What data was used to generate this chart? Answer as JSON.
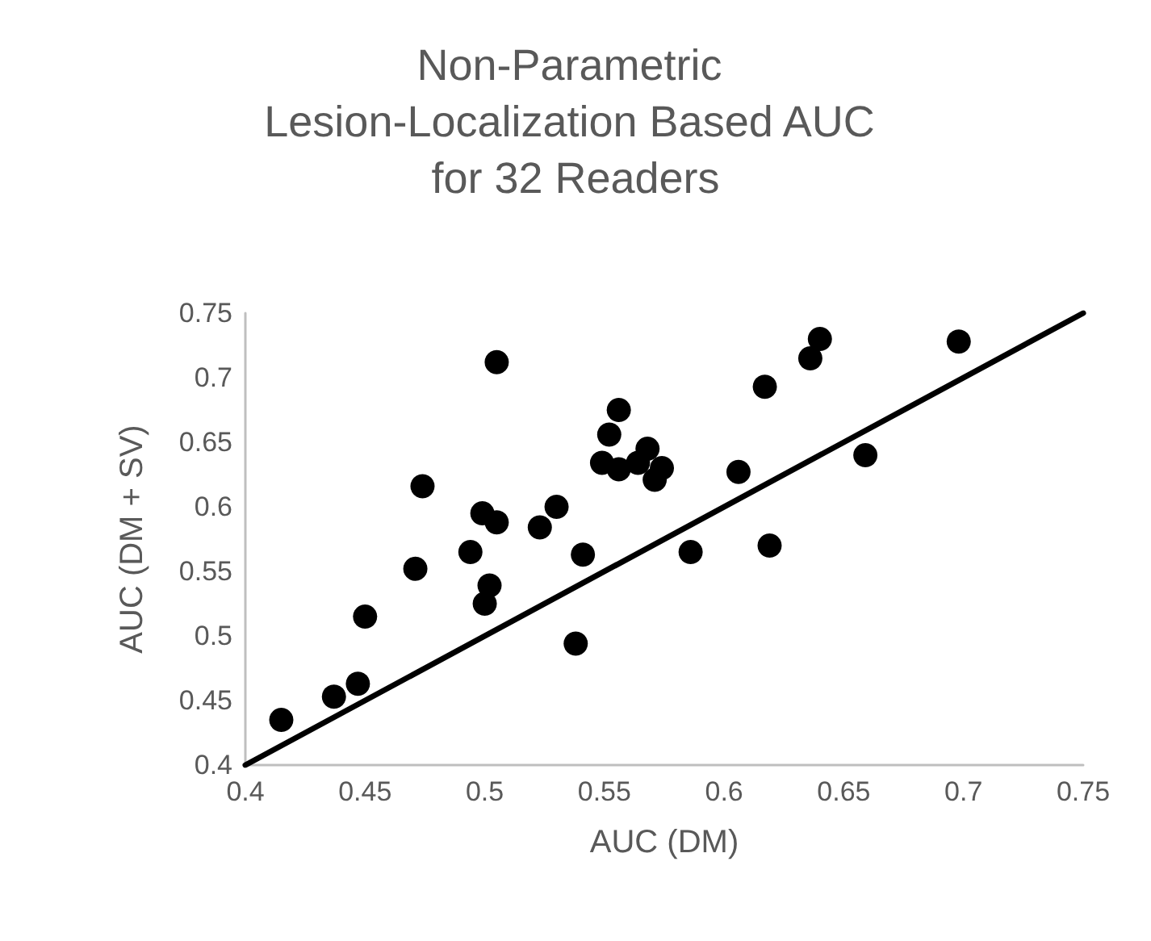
{
  "chart_data": {
    "type": "scatter",
    "title": "Non-Parametric Lesion-Localization Based AUC for 32 Readers",
    "xlabel": "AUC (DM)",
    "ylabel": "AUC (DM + SV)",
    "xlim": [
      0.4,
      0.75
    ],
    "xticks": [
      0.4,
      0.45,
      0.5,
      0.55,
      0.6,
      0.65,
      0.7,
      0.75
    ],
    "ylim": [
      0.4,
      0.75
    ],
    "yticks": [
      0.4,
      0.45,
      0.5,
      0.55,
      0.6,
      0.65,
      0.7,
      0.75
    ],
    "grid": false,
    "series": [
      {
        "color": "#000000",
        "marker": "circle",
        "x": [
          0.415,
          0.437,
          0.447,
          0.45,
          0.471,
          0.474,
          0.494,
          0.499,
          0.502,
          0.5,
          0.505,
          0.505,
          0.523,
          0.53,
          0.538,
          0.541,
          0.549,
          0.552,
          0.556,
          0.556,
          0.564,
          0.568,
          0.574,
          0.571,
          0.586,
          0.606,
          0.619,
          0.617,
          0.636,
          0.64,
          0.659,
          0.698
        ],
        "values": [
          0.435,
          0.453,
          0.463,
          0.515,
          0.552,
          0.616,
          0.565,
          0.595,
          0.539,
          0.525,
          0.588,
          0.712,
          0.584,
          0.6,
          0.494,
          0.563,
          0.634,
          0.656,
          0.675,
          0.629,
          0.634,
          0.645,
          0.63,
          0.621,
          0.565,
          0.627,
          0.57,
          0.693,
          0.715,
          0.73,
          0.64,
          0.728
        ]
      },
      {
        "type": "line",
        "color": "#000000",
        "marker": "none",
        "line_style": "solid",
        "x": [
          0.4,
          0.75
        ],
        "values": [
          0.4,
          0.75
        ]
      }
    ]
  }
}
